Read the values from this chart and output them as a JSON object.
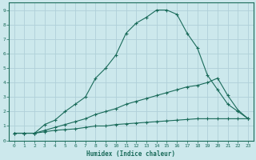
{
  "xlabel": "Humidex (Indice chaleur)",
  "bg_color": "#cce8ec",
  "grid_color": "#b0d0d8",
  "line_color": "#1a6b5a",
  "xlim": [
    -0.5,
    23.5
  ],
  "ylim": [
    0,
    9.5
  ],
  "xticks": [
    0,
    1,
    2,
    3,
    4,
    5,
    6,
    7,
    8,
    9,
    10,
    11,
    12,
    13,
    14,
    15,
    16,
    17,
    18,
    19,
    20,
    21,
    22,
    23
  ],
  "yticks": [
    0,
    1,
    2,
    3,
    4,
    5,
    6,
    7,
    8,
    9
  ],
  "curve_main_x": [
    0,
    1,
    2,
    3,
    4,
    5,
    6,
    7,
    8,
    9,
    10,
    11,
    12,
    13,
    14,
    15,
    16,
    17,
    18,
    19,
    20,
    21,
    22,
    23
  ],
  "curve_main_y": [
    0.5,
    0.5,
    0.5,
    1.1,
    1.4,
    2.0,
    2.5,
    3.0,
    4.3,
    5.0,
    5.9,
    7.4,
    8.1,
    8.5,
    9.0,
    9.0,
    8.7,
    7.4,
    6.4,
    4.5,
    3.5,
    2.5,
    2.0,
    1.5
  ],
  "curve_mid_x": [
    0,
    1,
    2,
    3,
    4,
    5,
    6,
    7,
    8,
    9,
    10,
    11,
    12,
    13,
    14,
    15,
    16,
    17,
    18,
    19,
    20,
    21,
    22,
    23
  ],
  "curve_mid_y": [
    0.5,
    0.5,
    0.5,
    0.7,
    0.9,
    1.1,
    1.3,
    1.5,
    1.8,
    2.0,
    2.2,
    2.5,
    2.7,
    2.9,
    3.1,
    3.3,
    3.5,
    3.7,
    3.8,
    4.0,
    4.3,
    3.1,
    2.1,
    1.5
  ],
  "curve_low_x": [
    0,
    1,
    2,
    3,
    4,
    5,
    6,
    7,
    8,
    9,
    10,
    11,
    12,
    13,
    14,
    15,
    16,
    17,
    18,
    19,
    20,
    21,
    22,
    23
  ],
  "curve_low_y": [
    0.5,
    0.5,
    0.5,
    0.6,
    0.7,
    0.75,
    0.8,
    0.9,
    1.0,
    1.0,
    1.1,
    1.15,
    1.2,
    1.25,
    1.3,
    1.35,
    1.4,
    1.45,
    1.5,
    1.5,
    1.5,
    1.5,
    1.5,
    1.5
  ]
}
